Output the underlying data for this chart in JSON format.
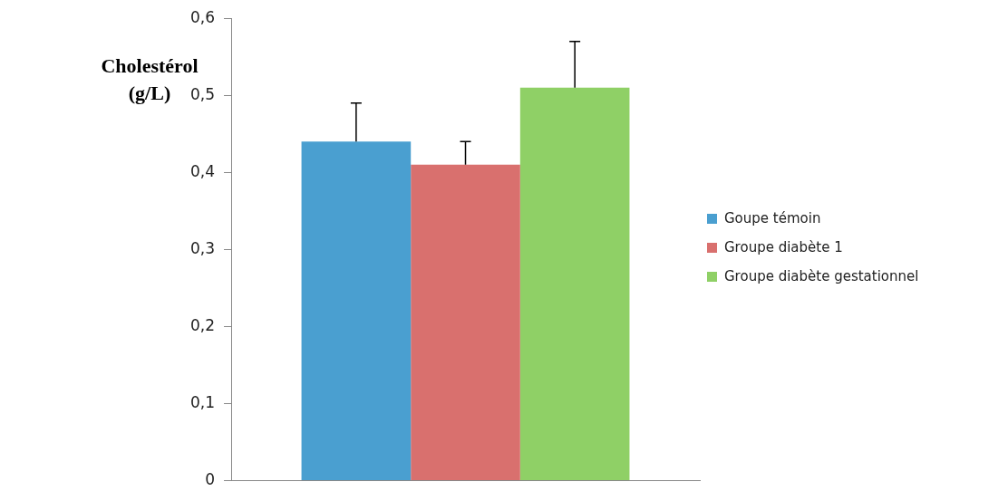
{
  "chart_data": {
    "type": "bar",
    "ylabel": "Cholestérol (g/L)",
    "categories": [
      null
    ],
    "series": [
      {
        "name": "Goupe témoin",
        "color": "#4a9fd0",
        "values": [
          0.44
        ],
        "errors": [
          [
            0.44,
            0.49
          ]
        ]
      },
      {
        "name": "Groupe diabète 1",
        "color": "#d9706e",
        "values": [
          0.41
        ],
        "errors": [
          [
            0.41,
            0.44
          ]
        ]
      },
      {
        "name": "Groupe diabète gestationnel",
        "color": "#8fd066",
        "values": [
          0.51
        ],
        "errors": [
          [
            0.51,
            0.57
          ]
        ]
      }
    ],
    "ylim": [
      0,
      0.6
    ],
    "yticks": [
      {
        "value": 0,
        "label": "0"
      },
      {
        "value": 0.1,
        "label": "0,1"
      },
      {
        "value": 0.2,
        "label": "0,2"
      },
      {
        "value": 0.3,
        "label": "0,3"
      },
      {
        "value": 0.4,
        "label": "0,4"
      },
      {
        "value": 0.5,
        "label": "0,5"
      },
      {
        "value": 0.6,
        "label": "0,6"
      }
    ],
    "grid": false,
    "legend": "right"
  }
}
